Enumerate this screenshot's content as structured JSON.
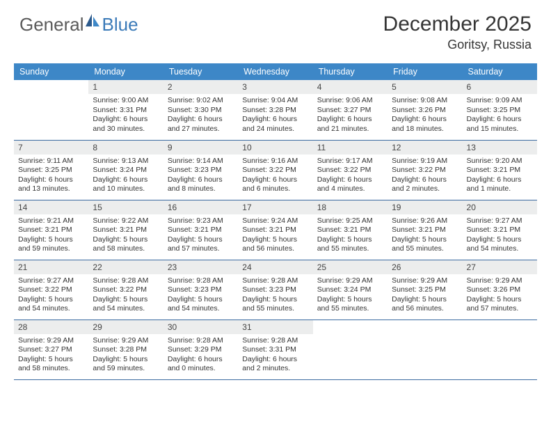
{
  "logo": {
    "text1": "General",
    "text2": "Blue"
  },
  "title": "December 2025",
  "location": "Goritsy, Russia",
  "headers": [
    "Sunday",
    "Monday",
    "Tuesday",
    "Wednesday",
    "Thursday",
    "Friday",
    "Saturday"
  ],
  "colors": {
    "header_bg": "#3d87c7",
    "header_fg": "#ffffff",
    "daynum_bg": "#eceded",
    "rule": "#3a6aa0",
    "logo_gray": "#5a5a5a",
    "logo_blue": "#3a7ab8"
  },
  "grid": {
    "rows": 5,
    "cols": 7
  },
  "days": [
    {
      "n": "",
      "sr": "",
      "ss": "",
      "dl": ""
    },
    {
      "n": "1",
      "sr": "Sunrise: 9:00 AM",
      "ss": "Sunset: 3:31 PM",
      "dl": "Daylight: 6 hours and 30 minutes."
    },
    {
      "n": "2",
      "sr": "Sunrise: 9:02 AM",
      "ss": "Sunset: 3:30 PM",
      "dl": "Daylight: 6 hours and 27 minutes."
    },
    {
      "n": "3",
      "sr": "Sunrise: 9:04 AM",
      "ss": "Sunset: 3:28 PM",
      "dl": "Daylight: 6 hours and 24 minutes."
    },
    {
      "n": "4",
      "sr": "Sunrise: 9:06 AM",
      "ss": "Sunset: 3:27 PM",
      "dl": "Daylight: 6 hours and 21 minutes."
    },
    {
      "n": "5",
      "sr": "Sunrise: 9:08 AM",
      "ss": "Sunset: 3:26 PM",
      "dl": "Daylight: 6 hours and 18 minutes."
    },
    {
      "n": "6",
      "sr": "Sunrise: 9:09 AM",
      "ss": "Sunset: 3:25 PM",
      "dl": "Daylight: 6 hours and 15 minutes."
    },
    {
      "n": "7",
      "sr": "Sunrise: 9:11 AM",
      "ss": "Sunset: 3:25 PM",
      "dl": "Daylight: 6 hours and 13 minutes."
    },
    {
      "n": "8",
      "sr": "Sunrise: 9:13 AM",
      "ss": "Sunset: 3:24 PM",
      "dl": "Daylight: 6 hours and 10 minutes."
    },
    {
      "n": "9",
      "sr": "Sunrise: 9:14 AM",
      "ss": "Sunset: 3:23 PM",
      "dl": "Daylight: 6 hours and 8 minutes."
    },
    {
      "n": "10",
      "sr": "Sunrise: 9:16 AM",
      "ss": "Sunset: 3:22 PM",
      "dl": "Daylight: 6 hours and 6 minutes."
    },
    {
      "n": "11",
      "sr": "Sunrise: 9:17 AM",
      "ss": "Sunset: 3:22 PM",
      "dl": "Daylight: 6 hours and 4 minutes."
    },
    {
      "n": "12",
      "sr": "Sunrise: 9:19 AM",
      "ss": "Sunset: 3:22 PM",
      "dl": "Daylight: 6 hours and 2 minutes."
    },
    {
      "n": "13",
      "sr": "Sunrise: 9:20 AM",
      "ss": "Sunset: 3:21 PM",
      "dl": "Daylight: 6 hours and 1 minute."
    },
    {
      "n": "14",
      "sr": "Sunrise: 9:21 AM",
      "ss": "Sunset: 3:21 PM",
      "dl": "Daylight: 5 hours and 59 minutes."
    },
    {
      "n": "15",
      "sr": "Sunrise: 9:22 AM",
      "ss": "Sunset: 3:21 PM",
      "dl": "Daylight: 5 hours and 58 minutes."
    },
    {
      "n": "16",
      "sr": "Sunrise: 9:23 AM",
      "ss": "Sunset: 3:21 PM",
      "dl": "Daylight: 5 hours and 57 minutes."
    },
    {
      "n": "17",
      "sr": "Sunrise: 9:24 AM",
      "ss": "Sunset: 3:21 PM",
      "dl": "Daylight: 5 hours and 56 minutes."
    },
    {
      "n": "18",
      "sr": "Sunrise: 9:25 AM",
      "ss": "Sunset: 3:21 PM",
      "dl": "Daylight: 5 hours and 55 minutes."
    },
    {
      "n": "19",
      "sr": "Sunrise: 9:26 AM",
      "ss": "Sunset: 3:21 PM",
      "dl": "Daylight: 5 hours and 55 minutes."
    },
    {
      "n": "20",
      "sr": "Sunrise: 9:27 AM",
      "ss": "Sunset: 3:21 PM",
      "dl": "Daylight: 5 hours and 54 minutes."
    },
    {
      "n": "21",
      "sr": "Sunrise: 9:27 AM",
      "ss": "Sunset: 3:22 PM",
      "dl": "Daylight: 5 hours and 54 minutes."
    },
    {
      "n": "22",
      "sr": "Sunrise: 9:28 AM",
      "ss": "Sunset: 3:22 PM",
      "dl": "Daylight: 5 hours and 54 minutes."
    },
    {
      "n": "23",
      "sr": "Sunrise: 9:28 AM",
      "ss": "Sunset: 3:23 PM",
      "dl": "Daylight: 5 hours and 54 minutes."
    },
    {
      "n": "24",
      "sr": "Sunrise: 9:28 AM",
      "ss": "Sunset: 3:23 PM",
      "dl": "Daylight: 5 hours and 55 minutes."
    },
    {
      "n": "25",
      "sr": "Sunrise: 9:29 AM",
      "ss": "Sunset: 3:24 PM",
      "dl": "Daylight: 5 hours and 55 minutes."
    },
    {
      "n": "26",
      "sr": "Sunrise: 9:29 AM",
      "ss": "Sunset: 3:25 PM",
      "dl": "Daylight: 5 hours and 56 minutes."
    },
    {
      "n": "27",
      "sr": "Sunrise: 9:29 AM",
      "ss": "Sunset: 3:26 PM",
      "dl": "Daylight: 5 hours and 57 minutes."
    },
    {
      "n": "28",
      "sr": "Sunrise: 9:29 AM",
      "ss": "Sunset: 3:27 PM",
      "dl": "Daylight: 5 hours and 58 minutes."
    },
    {
      "n": "29",
      "sr": "Sunrise: 9:29 AM",
      "ss": "Sunset: 3:28 PM",
      "dl": "Daylight: 5 hours and 59 minutes."
    },
    {
      "n": "30",
      "sr": "Sunrise: 9:28 AM",
      "ss": "Sunset: 3:29 PM",
      "dl": "Daylight: 6 hours and 0 minutes."
    },
    {
      "n": "31",
      "sr": "Sunrise: 9:28 AM",
      "ss": "Sunset: 3:31 PM",
      "dl": "Daylight: 6 hours and 2 minutes."
    },
    {
      "n": "",
      "sr": "",
      "ss": "",
      "dl": ""
    },
    {
      "n": "",
      "sr": "",
      "ss": "",
      "dl": ""
    },
    {
      "n": "",
      "sr": "",
      "ss": "",
      "dl": ""
    }
  ]
}
